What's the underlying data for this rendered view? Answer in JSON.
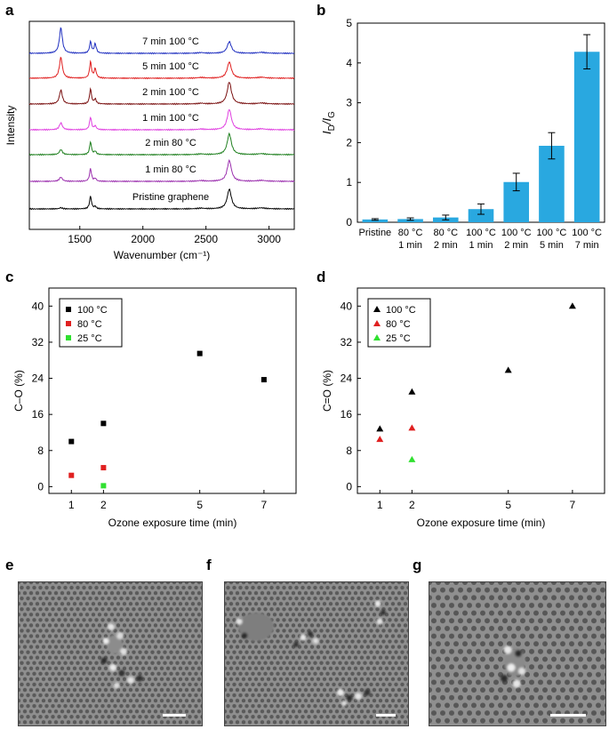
{
  "panel_labels": {
    "a": "a",
    "b": "b",
    "c": "c",
    "d": "d",
    "e": "e",
    "f": "f",
    "g": "g"
  },
  "chart_data": [
    {
      "panel": "a",
      "type": "line",
      "xlabel": "Wavenumber (cm⁻¹)",
      "ylabel": "Intensity",
      "xlim": [
        1100,
        3200
      ],
      "xticks": [
        1500,
        2000,
        2500,
        3000
      ],
      "yticks_shown": false,
      "series": [
        {
          "name": "Pristine graphene",
          "color": "#000000",
          "D": 0.05,
          "G": 0.55,
          "D2": 0.1,
          "TwoD": 0.85
        },
        {
          "name": "1 min 80 °C",
          "color": "#9b2fae",
          "D": 0.18,
          "G": 0.55,
          "D2": 0.12,
          "TwoD": 0.9
        },
        {
          "name": "2 min 80 °C",
          "color": "#208020",
          "D": 0.22,
          "G": 0.55,
          "D2": 0.14,
          "TwoD": 0.9
        },
        {
          "name": "1 min 100 °C",
          "color": "#e040e0",
          "D": 0.3,
          "G": 0.55,
          "D2": 0.16,
          "TwoD": 0.88
        },
        {
          "name": "2 min 100 °C",
          "color": "#7a1010",
          "D": 0.6,
          "G": 0.65,
          "D2": 0.2,
          "TwoD": 0.95
        },
        {
          "name": "5 min 100 °C",
          "color": "#e02020",
          "D": 0.9,
          "G": 0.7,
          "D2": 0.4,
          "TwoD": 0.7
        },
        {
          "name": "7 min 100 °C",
          "color": "#2030c0",
          "D": 1.1,
          "G": 0.5,
          "D2": 0.4,
          "TwoD": 0.5
        }
      ]
    },
    {
      "panel": "b",
      "type": "bar",
      "ylabel_main": "I",
      "ylabel_sub1": "D",
      "ylabel_sep": "/I",
      "ylabel_sub2": "G",
      "ylim": [
        0,
        5
      ],
      "yticks": [
        0,
        1,
        2,
        3,
        4,
        5
      ],
      "bar_color": "#29a8e0",
      "categories": [
        [
          "Pristine"
        ],
        [
          "80 °C",
          "1 min"
        ],
        [
          "80 °C",
          "2 min"
        ],
        [
          "100 °C",
          "1 min"
        ],
        [
          "100 °C",
          "2 min"
        ],
        [
          "100 °C",
          "5 min"
        ],
        [
          "100 °C",
          "7 min"
        ]
      ],
      "values": [
        0.07,
        0.08,
        0.12,
        0.33,
        1.01,
        1.92,
        4.28
      ],
      "errors": [
        0.02,
        0.03,
        0.06,
        0.13,
        0.22,
        0.33,
        0.43
      ]
    },
    {
      "panel": "c",
      "type": "scatter",
      "marker": "square",
      "xlabel": "Ozone exposure time (min)",
      "ylabel": "C–O (%)",
      "xlim": [
        0.3,
        8
      ],
      "ylim": [
        -1.5,
        44
      ],
      "xticks": [
        1,
        2,
        5,
        7
      ],
      "yticks": [
        0,
        8,
        16,
        24,
        32,
        40
      ],
      "legend_position": "top-left",
      "series": [
        {
          "name": "100 °C",
          "color": "#000000",
          "x": [
            1,
            2,
            5,
            7
          ],
          "y": [
            10.0,
            14.0,
            29.5,
            23.7
          ]
        },
        {
          "name": "80 °C",
          "color": "#e02020",
          "x": [
            1,
            2
          ],
          "y": [
            2.5,
            4.2
          ]
        },
        {
          "name": "25 °C",
          "color": "#30e030",
          "x": [
            2
          ],
          "y": [
            0.2
          ]
        }
      ]
    },
    {
      "panel": "d",
      "type": "scatter",
      "marker": "triangle",
      "xlabel": "Ozone exposure time (min)",
      "ylabel": "C=O (%)",
      "xlim": [
        0.3,
        8
      ],
      "ylim": [
        -1.5,
        44
      ],
      "xticks": [
        1,
        2,
        5,
        7
      ],
      "yticks": [
        0,
        8,
        16,
        24,
        32,
        40
      ],
      "legend_position": "top-left",
      "series": [
        {
          "name": "100 °C",
          "color": "#000000",
          "x": [
            1,
            2,
            5,
            7
          ],
          "y": [
            12.8,
            21.0,
            25.8,
            40.0
          ]
        },
        {
          "name": "80 °C",
          "color": "#e02020",
          "x": [
            1,
            2
          ],
          "y": [
            10.5,
            13.0
          ]
        },
        {
          "name": "25 °C",
          "color": "#30e030",
          "x": [
            2
          ],
          "y": [
            6.0
          ]
        }
      ]
    }
  ]
}
